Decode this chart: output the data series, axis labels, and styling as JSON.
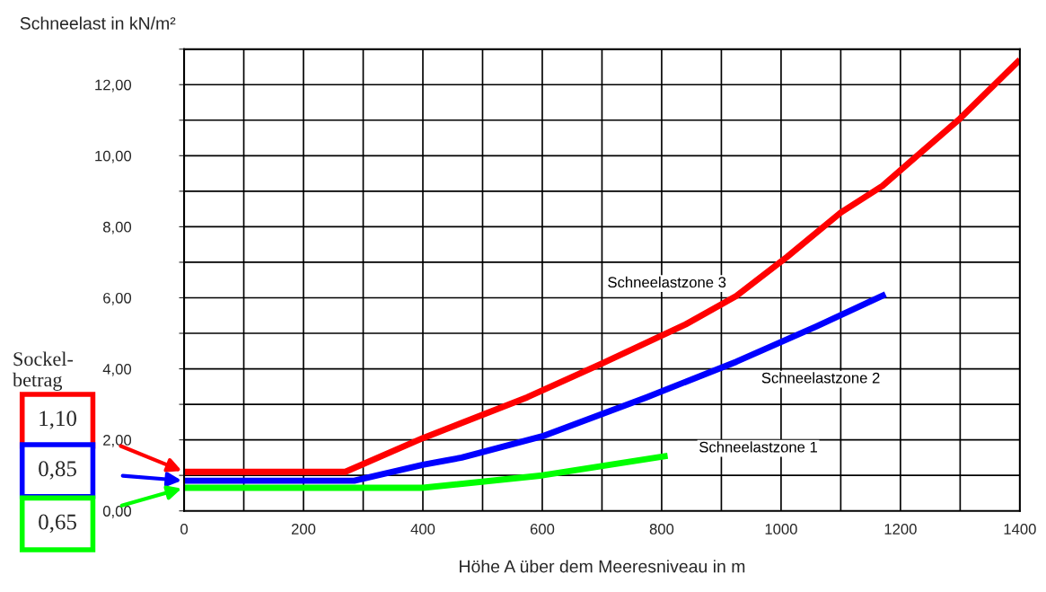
{
  "chart_data": {
    "type": "line",
    "xlabel": "Höhe A über dem Meeresniveau in m",
    "ylabel": "Schneelast in kN/m²",
    "series": [
      {
        "name": "Schneelastzone 3",
        "color": "#ff0000",
        "x": [
          0,
          270,
          400,
          575,
          700,
          840,
          925,
          1010,
          1100,
          1170,
          1300,
          1400
        ],
        "values": [
          1.1,
          1.1,
          2.05,
          3.2,
          4.15,
          5.25,
          6.05,
          7.15,
          8.4,
          9.15,
          11.05,
          12.7
        ]
      },
      {
        "name": "Schneelastzone 2",
        "color": "#0000ff",
        "x": [
          0,
          285,
          400,
          465,
          600,
          775,
          925,
          1060,
          1175
        ],
        "values": [
          0.85,
          0.85,
          1.3,
          1.5,
          2.1,
          3.2,
          4.2,
          5.2,
          6.1
        ]
      },
      {
        "name": "Schneelastzone 1",
        "color": "#00ff00",
        "x": [
          0,
          400,
          600,
          810
        ],
        "values": [
          0.65,
          0.65,
          1.0,
          1.55
        ]
      }
    ],
    "xlim": [
      0,
      1400
    ],
    "xticks": [
      0,
      {
        "value": 100,
        "label": null
      },
      200,
      {
        "value": 300,
        "label": null
      },
      400,
      {
        "value": 500,
        "label": null
      },
      600,
      {
        "value": 700,
        "label": null
      },
      800,
      {
        "value": 900,
        "label": null
      },
      1000,
      {
        "value": 1100,
        "label": null
      },
      1200,
      {
        "value": 1300,
        "label": null
      },
      1400
    ],
    "ylim": [
      0,
      13
    ],
    "yticks": [
      {
        "value": 0,
        "label": "0,00"
      },
      {
        "value": 1,
        "label": null
      },
      {
        "value": 2,
        "label": "2,00"
      },
      {
        "value": 3,
        "label": null
      },
      {
        "value": 4,
        "label": "4,00"
      },
      {
        "value": 5,
        "label": null
      },
      {
        "value": 6,
        "label": "6,00"
      },
      {
        "value": 7,
        "label": null
      },
      {
        "value": 8,
        "label": "8,00"
      },
      {
        "value": 9,
        "label": null
      },
      {
        "value": 10,
        "label": "10,00"
      },
      {
        "value": 11,
        "label": null
      },
      {
        "value": 12,
        "label": "12,00"
      },
      {
        "value": 13,
        "label": null
      }
    ],
    "grid": true,
    "legend": false,
    "line_style": "solid",
    "marker": "none",
    "annotations": [
      "Sockel-\nbetrag",
      "1,10",
      "0,85",
      "0,65"
    ]
  }
}
